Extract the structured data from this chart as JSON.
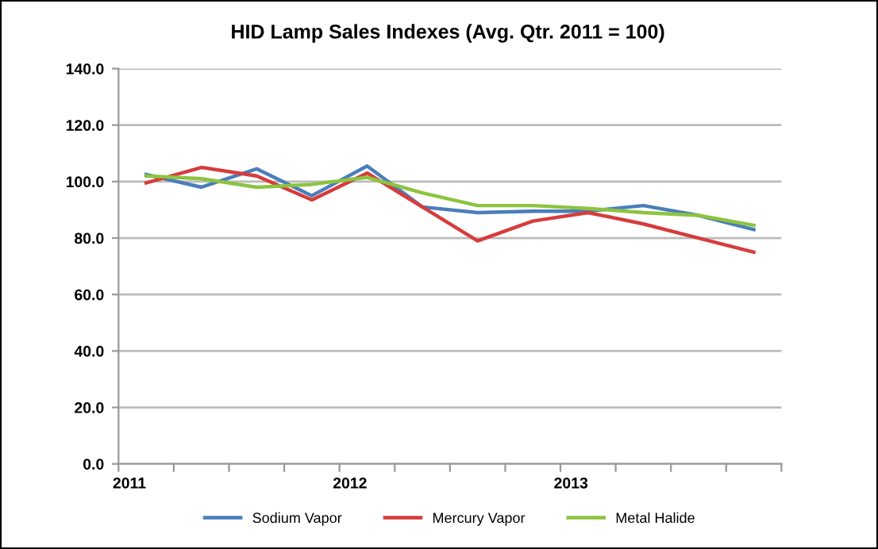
{
  "chart_data": {
    "type": "line",
    "title": "HID Lamp Sales Indexes (Avg. Qtr. 2011 = 100)",
    "categories": [
      "2011",
      null,
      null,
      null,
      "2012",
      null,
      null,
      null,
      "2013",
      null,
      null,
      null
    ],
    "series": [
      {
        "name": "Sodium Vapor",
        "color": "#4a7ebb",
        "values": [
          102.5,
          98,
          104.5,
          95,
          105.5,
          91,
          89,
          89.5,
          89.5,
          91.5,
          88,
          83
        ]
      },
      {
        "name": "Mercury Vapor",
        "color": "#d63c3c",
        "values": [
          99.5,
          105,
          102,
          93.5,
          103,
          91,
          79,
          86,
          89,
          85,
          80,
          75
        ]
      },
      {
        "name": "Metal Halide",
        "color": "#8cc43f",
        "values": [
          102,
          101,
          98,
          99,
          101.5,
          96,
          91.5,
          91.5,
          90.5,
          89,
          88,
          84.5
        ]
      }
    ],
    "ylim": [
      0,
      140
    ],
    "yticks": [
      {
        "value": 0,
        "label": "0.0"
      },
      {
        "value": 20,
        "label": "20.0"
      },
      {
        "value": 40,
        "label": "40.0"
      },
      {
        "value": 60,
        "label": "60.0"
      },
      {
        "value": 80,
        "label": "80.0"
      },
      {
        "value": 100,
        "label": "100.0"
      },
      {
        "value": 120,
        "label": "120.0"
      },
      {
        "value": 140,
        "label": "140.0"
      }
    ],
    "grid": "y",
    "legend": "bottom",
    "marker": "none",
    "line_style": "solid"
  }
}
